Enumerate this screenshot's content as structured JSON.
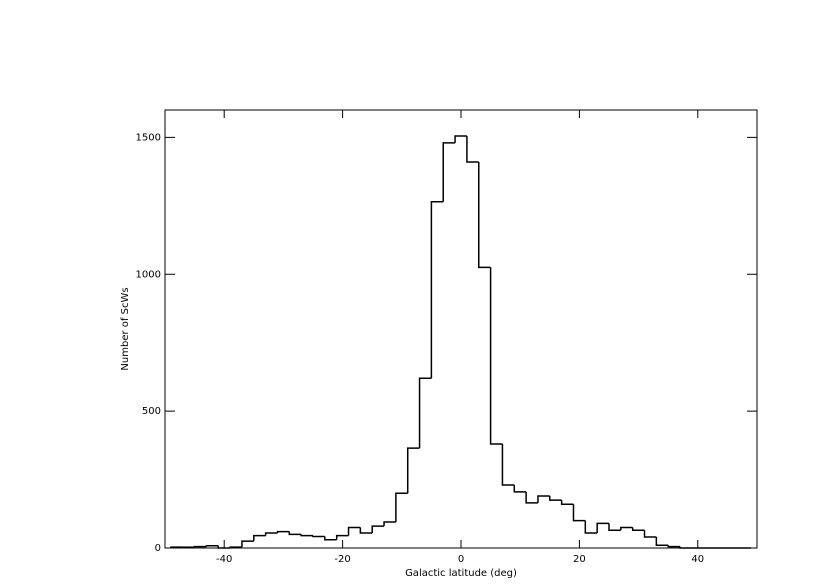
{
  "chart_data": {
    "type": "histogram",
    "xlabel": "Galactic latitude (deg)",
    "ylabel": "Number of ScWs",
    "bins": [
      -49,
      -47,
      -45,
      -43,
      -41,
      -39,
      -37,
      -35,
      -33,
      -31,
      -29,
      -27,
      -25,
      -23,
      -21,
      -19,
      -17,
      -15,
      -13,
      -11,
      -9,
      -7,
      -5,
      -3,
      -1,
      1,
      3,
      5,
      7,
      9,
      11,
      13,
      15,
      17,
      19,
      21,
      23,
      25,
      27,
      29,
      31,
      33,
      35,
      37,
      39,
      41,
      43,
      45,
      47,
      49
    ],
    "counts": [
      3,
      3,
      5,
      8,
      0,
      3,
      25,
      45,
      55,
      60,
      50,
      45,
      42,
      30,
      45,
      75,
      55,
      80,
      95,
      200,
      365,
      620,
      1265,
      1480,
      1505,
      1410,
      1025,
      380,
      230,
      205,
      165,
      190,
      175,
      160,
      100,
      55,
      90,
      65,
      75,
      65,
      40,
      10,
      5,
      0,
      0,
      0,
      0,
      0,
      0
    ],
    "color": "#000000",
    "xlim": [
      -50,
      50
    ],
    "xticks": [
      -40,
      -20,
      0,
      20,
      40
    ],
    "ylim": [
      0,
      1600
    ],
    "yticks": [
      0,
      500,
      1000,
      1500
    ]
  }
}
